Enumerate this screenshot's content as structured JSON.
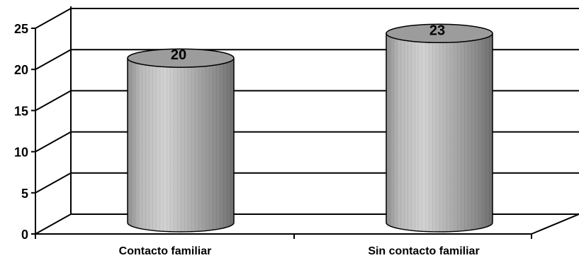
{
  "chart_data": {
    "type": "bar",
    "style": "3d-cylinder",
    "categories": [
      "Contacto familiar",
      "Sin contacto familiar"
    ],
    "values": [
      20,
      23
    ],
    "data_labels": [
      "20",
      "23"
    ],
    "ylim": [
      0,
      25
    ],
    "y_ticks": [
      "0",
      "5",
      "10",
      "15",
      "20",
      "25"
    ],
    "grid": true,
    "legend": "none",
    "colors": {
      "bar": "#b4b4b4",
      "bar_top": "#9c9c9c",
      "grid": "#000000"
    }
  }
}
